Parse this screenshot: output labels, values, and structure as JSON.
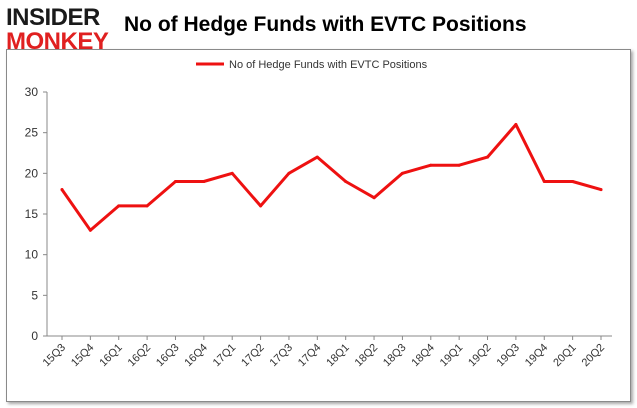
{
  "logo": {
    "line1": "INSIDER",
    "line2": "MONKEY",
    "color_dark": "#1a1a1a",
    "color_red": "#e02020"
  },
  "title": "No of Hedge Funds with EVTC Positions",
  "chart_data": {
    "type": "line",
    "title": "No of Hedge Funds with EVTC Positions",
    "xlabel": "",
    "ylabel": "",
    "categories": [
      "15Q3",
      "15Q4",
      "16Q1",
      "16Q2",
      "16Q3",
      "16Q4",
      "17Q1",
      "17Q2",
      "17Q3",
      "17Q4",
      "18Q1",
      "18Q2",
      "18Q3",
      "18Q4",
      "19Q1",
      "19Q2",
      "19Q3",
      "19Q4",
      "20Q1",
      "20Q2"
    ],
    "series": [
      {
        "name": "No of Hedge Funds with EVTC  Positions",
        "color": "#ee1111",
        "values": [
          18,
          13,
          16,
          16,
          19,
          19,
          20,
          16,
          20,
          22,
          19,
          17,
          20,
          21,
          21,
          22,
          26,
          19,
          19,
          18
        ]
      }
    ],
    "ylim": [
      0,
      30
    ],
    "yticks": [
      0,
      5,
      10,
      15,
      20,
      25,
      30
    ],
    "grid": false,
    "legend_position": "top-center"
  }
}
